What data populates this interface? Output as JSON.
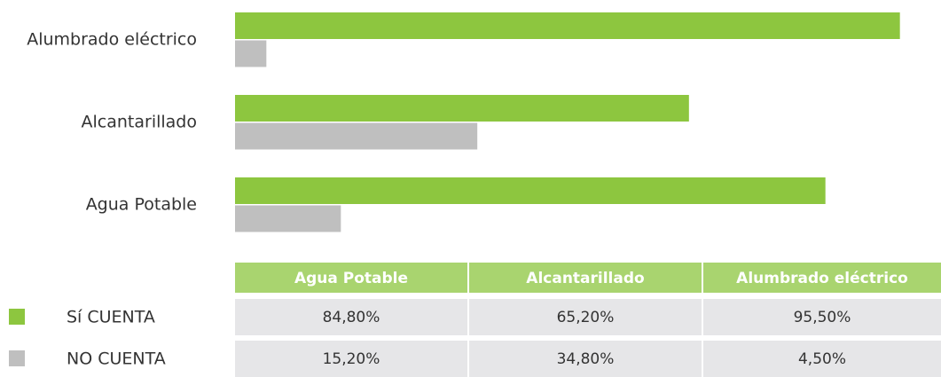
{
  "chart_data": {
    "type": "bar",
    "orientation": "horizontal",
    "categories": [
      "Agua Potable",
      "Alcantarillado",
      "Alumbrado eléctrico"
    ],
    "series": [
      {
        "name": "Sí CUENTA",
        "color": "#8dc63f",
        "values": [
          84.8,
          65.2,
          95.5
        ],
        "value_labels": [
          "84,80%",
          "65,20%",
          "95,50%"
        ]
      },
      {
        "name": "NO CUENTA",
        "color": "#bfbfbf",
        "values": [
          15.2,
          34.8,
          4.5
        ],
        "value_labels": [
          "15,20%",
          "34,80%",
          "4,50%"
        ]
      }
    ],
    "xlim": [
      0,
      100
    ],
    "table_header_color": "#a9d46f",
    "table_cell_color": "#e6e6e8"
  }
}
